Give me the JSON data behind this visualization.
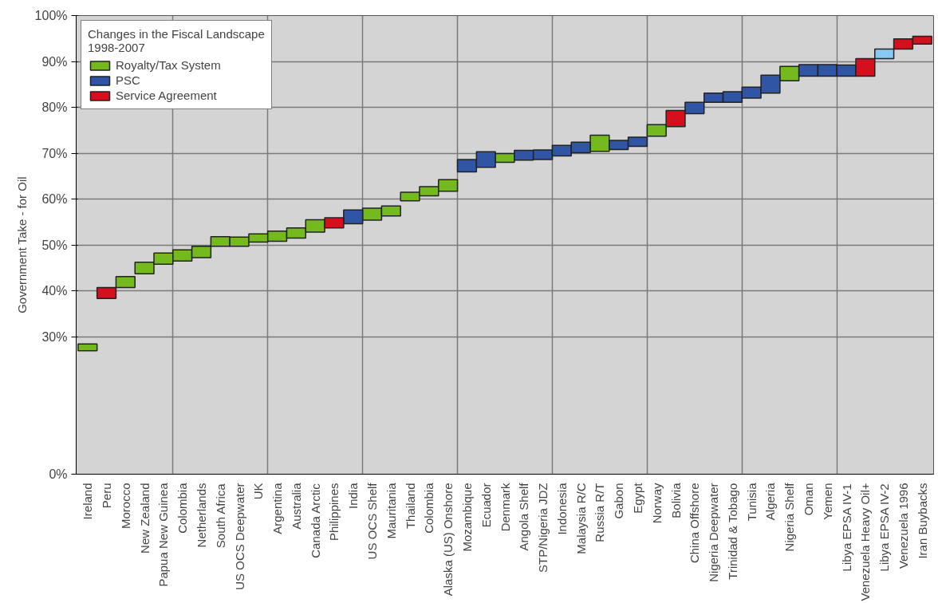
{
  "chart_data": {
    "type": "bar",
    "ylabel": "Government Take - for Oil",
    "legend_title": "Changes in the Fiscal Landscape\n1998-2007",
    "legend": "top left",
    "grid": true,
    "categories": [
      "Ireland",
      "Peru",
      "Morocco",
      "New Zealand",
      "Papua New Guinea",
      "Colombia",
      "Netherlands",
      "South Africa",
      "US OCS Deepwater",
      "UK",
      "Argentina",
      "Australia",
      "Canada Arctic",
      "Philippines",
      "India",
      "US OCS Shelf",
      "Mauritania",
      "Thailand",
      "Colombia",
      "Alaska (US) Onshore",
      "Mozambique",
      "Ecuador",
      "Denmark",
      "Angola Shelf",
      "STP/Nigeria JDZ",
      "Indonesia",
      "Malaysia R/C",
      "Russia R/T",
      "Gabon",
      "Egypt",
      "Norway",
      "Bolivia",
      "China Offshore",
      "Nigeria Deepwater",
      "Trinidad & Tobago",
      "Tunisia",
      "Algeria",
      "Nigeria Shelf",
      "Oman",
      "Yemen",
      "Libya EPSA IV-1",
      "Venezuela Heavy Oil+",
      "Libya EPSA IV-2",
      "Venezuela 1996",
      "Iran Buybacks"
    ],
    "ylim": [
      0,
      100
    ],
    "yticks": [
      {
        "value": 0,
        "label": "0%"
      },
      {
        "value": 30,
        "label": "30%"
      },
      {
        "value": 40,
        "label": "40%"
      },
      {
        "value": 50,
        "label": "50%"
      },
      {
        "value": 60,
        "label": "60%"
      },
      {
        "value": 70,
        "label": "70%"
      },
      {
        "value": 80,
        "label": "80%"
      },
      {
        "value": 90,
        "label": "90%"
      },
      {
        "value": 100,
        "label": "100%"
      }
    ],
    "series": [
      {
        "name": "Royalty/Tax System",
        "color": "#74b91e",
        "base": [
          26.9,
          null,
          40.7,
          43.7,
          45.8,
          46.5,
          47.2,
          49.7,
          49.7,
          50.6,
          50.8,
          51.5,
          52.8,
          null,
          null,
          55.4,
          56.3,
          59.6,
          60.7,
          61.7,
          null,
          null,
          68.0,
          null,
          null,
          null,
          null,
          70.4,
          null,
          null,
          73.7,
          null,
          null,
          null,
          null,
          null,
          null,
          85.8,
          null,
          null,
          null,
          null,
          null,
          null,
          null
        ],
        "values": [
          1.5,
          null,
          2.4,
          2.5,
          2.4,
          2.4,
          2.5,
          2.1,
          2.0,
          1.8,
          2.2,
          2.2,
          2.7,
          null,
          null,
          2.6,
          2.2,
          1.9,
          2.0,
          2.5,
          null,
          null,
          1.9,
          null,
          null,
          null,
          null,
          3.5,
          null,
          null,
          2.5,
          null,
          null,
          null,
          null,
          null,
          null,
          3.1,
          null,
          null,
          null,
          null,
          null,
          null,
          null
        ]
      },
      {
        "name": "PSC",
        "color": "#2f55a4",
        "base": [
          null,
          null,
          null,
          null,
          null,
          null,
          null,
          null,
          null,
          null,
          null,
          null,
          null,
          null,
          54.6,
          null,
          null,
          null,
          null,
          null,
          65.9,
          66.9,
          null,
          68.5,
          68.6,
          69.4,
          70.1,
          null,
          70.8,
          71.5,
          null,
          null,
          78.6,
          81.1,
          81.1,
          82.0,
          83.1,
          null,
          86.8,
          86.8,
          86.8,
          null,
          null,
          null,
          null
        ],
        "values": [
          null,
          null,
          null,
          null,
          null,
          null,
          null,
          null,
          null,
          null,
          null,
          null,
          null,
          null,
          3.0,
          null,
          null,
          null,
          null,
          null,
          2.7,
          3.4,
          null,
          2.1,
          2.1,
          2.3,
          2.3,
          null,
          2.0,
          2.0,
          null,
          null,
          2.5,
          2.0,
          2.3,
          2.4,
          3.9,
          null,
          2.5,
          2.5,
          2.4,
          null,
          null,
          null,
          null
        ]
      },
      {
        "name": "Service Agreement",
        "color": "#d3101c",
        "base": [
          null,
          38.3,
          null,
          null,
          null,
          null,
          null,
          null,
          null,
          null,
          null,
          null,
          null,
          53.7,
          null,
          null,
          null,
          null,
          null,
          null,
          null,
          null,
          null,
          null,
          null,
          null,
          null,
          null,
          null,
          null,
          null,
          75.8,
          null,
          null,
          null,
          null,
          null,
          null,
          null,
          null,
          null,
          86.8,
          null,
          92.7,
          93.8
        ],
        "values": [
          null,
          2.4,
          null,
          null,
          null,
          null,
          null,
          null,
          null,
          null,
          null,
          null,
          null,
          2.2,
          null,
          null,
          null,
          null,
          null,
          null,
          null,
          null,
          null,
          null,
          null,
          null,
          null,
          null,
          null,
          null,
          null,
          3.5,
          null,
          null,
          null,
          null,
          null,
          null,
          null,
          null,
          null,
          3.8,
          null,
          2.2,
          1.7
        ]
      },
      {
        "color": "#88c8f5",
        "base": [
          null,
          null,
          null,
          null,
          null,
          null,
          null,
          null,
          null,
          null,
          null,
          null,
          null,
          null,
          null,
          null,
          null,
          null,
          null,
          null,
          null,
          null,
          null,
          null,
          null,
          null,
          null,
          null,
          null,
          null,
          null,
          null,
          null,
          null,
          null,
          null,
          null,
          null,
          null,
          null,
          null,
          null,
          90.6,
          null,
          null
        ],
        "values": [
          null,
          null,
          null,
          null,
          null,
          null,
          null,
          null,
          null,
          null,
          null,
          null,
          null,
          null,
          null,
          null,
          null,
          null,
          null,
          null,
          null,
          null,
          null,
          null,
          null,
          null,
          null,
          null,
          null,
          null,
          null,
          null,
          null,
          null,
          null,
          null,
          null,
          null,
          null,
          null,
          null,
          null,
          2.1,
          null,
          null
        ]
      }
    ]
  }
}
